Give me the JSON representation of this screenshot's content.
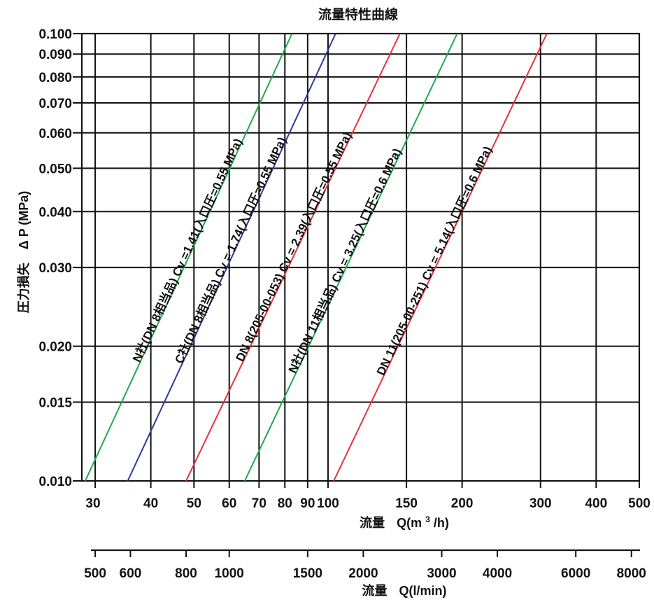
{
  "chart_data": {
    "type": "line",
    "title": "流量特性曲線",
    "scale": "log-log",
    "grid": "on",
    "xlabel": {
      "prefix": "流量",
      "main": "Q(m",
      "sup": "3",
      "suffix": "/h)"
    },
    "ylabel": {
      "prefix": "圧力損失",
      "main": "Δ P (MPa)"
    },
    "x2label": {
      "prefix": "流量",
      "main": "Q(l/min)"
    },
    "xlim": [
      28,
      500
    ],
    "ylim": [
      0.01,
      0.1
    ],
    "x_ticks": [
      {
        "value": 30,
        "label": "30"
      },
      {
        "value": 40,
        "label": "40"
      },
      {
        "value": 50,
        "label": "50"
      },
      {
        "value": 60,
        "label": "60"
      },
      {
        "value": 70,
        "label": "70"
      },
      {
        "value": 80,
        "label": "80"
      },
      {
        "value": 90,
        "label": "90"
      },
      {
        "value": 100,
        "label": "100"
      },
      {
        "value": 150,
        "label": "150"
      },
      {
        "value": 200,
        "label": "200"
      },
      {
        "value": 300,
        "label": "300"
      },
      {
        "value": 400,
        "label": "400"
      },
      {
        "value": 500,
        "label": "500"
      }
    ],
    "x2_ticks": [
      {
        "value": 500,
        "label": "500"
      },
      {
        "value": 600,
        "label": "600"
      },
      {
        "value": 800,
        "label": "800"
      },
      {
        "value": 1000,
        "label": "1000"
      },
      {
        "value": 1500,
        "label": "1500"
      },
      {
        "value": 2000,
        "label": "2000"
      },
      {
        "value": 3000,
        "label": "3000"
      },
      {
        "value": 4000,
        "label": "4000"
      },
      {
        "value": 6000,
        "label": "6000"
      },
      {
        "value": 8000,
        "label": "8000"
      }
    ],
    "y_ticks": [
      {
        "value": 0.01,
        "label": "0.010"
      },
      {
        "value": 0.015,
        "label": "0.015"
      },
      {
        "value": 0.02,
        "label": "0.020"
      },
      {
        "value": 0.03,
        "label": "0.030"
      },
      {
        "value": 0.04,
        "label": "0.040"
      },
      {
        "value": 0.05,
        "label": "0.050"
      },
      {
        "value": 0.06,
        "label": "0.060"
      },
      {
        "value": 0.07,
        "label": "0.070"
      },
      {
        "value": 0.08,
        "label": "0.080"
      },
      {
        "value": 0.09,
        "label": "0.090"
      },
      {
        "value": 0.1,
        "label": "0.100"
      }
    ],
    "series": [
      {
        "name": "N社(DN 8相当品)  Cv =1.41(入口圧=0.55 MPa)",
        "color": "#1faa4b",
        "x": [
          28.5,
          83
        ],
        "y": [
          0.01,
          0.1
        ]
      },
      {
        "name": "C社(DN 8相当品)  Cv = 1.74(入口圧=0.55 MPa)",
        "color": "#2b3a97",
        "x": [
          35.5,
          104
        ],
        "y": [
          0.01,
          0.1
        ]
      },
      {
        "name": "DN 8(205-00-053)  Cv = 2.39(入口圧=0.55 MPa)",
        "color": "#e53238",
        "x": [
          48,
          145
        ],
        "y": [
          0.01,
          0.1
        ]
      },
      {
        "name": "N社(DN 11相当品)  Cv = 3.25(入口圧=0.6 MPa)",
        "color": "#1faa4b",
        "x": [
          65,
          195
        ],
        "y": [
          0.01,
          0.1
        ]
      },
      {
        "name": "DN 11(205-00-251)  Cv = 5.14(入口圧=0.6 MPa)",
        "color": "#e53238",
        "x": [
          103,
          310
        ],
        "y": [
          0.01,
          0.1
        ]
      }
    ]
  }
}
